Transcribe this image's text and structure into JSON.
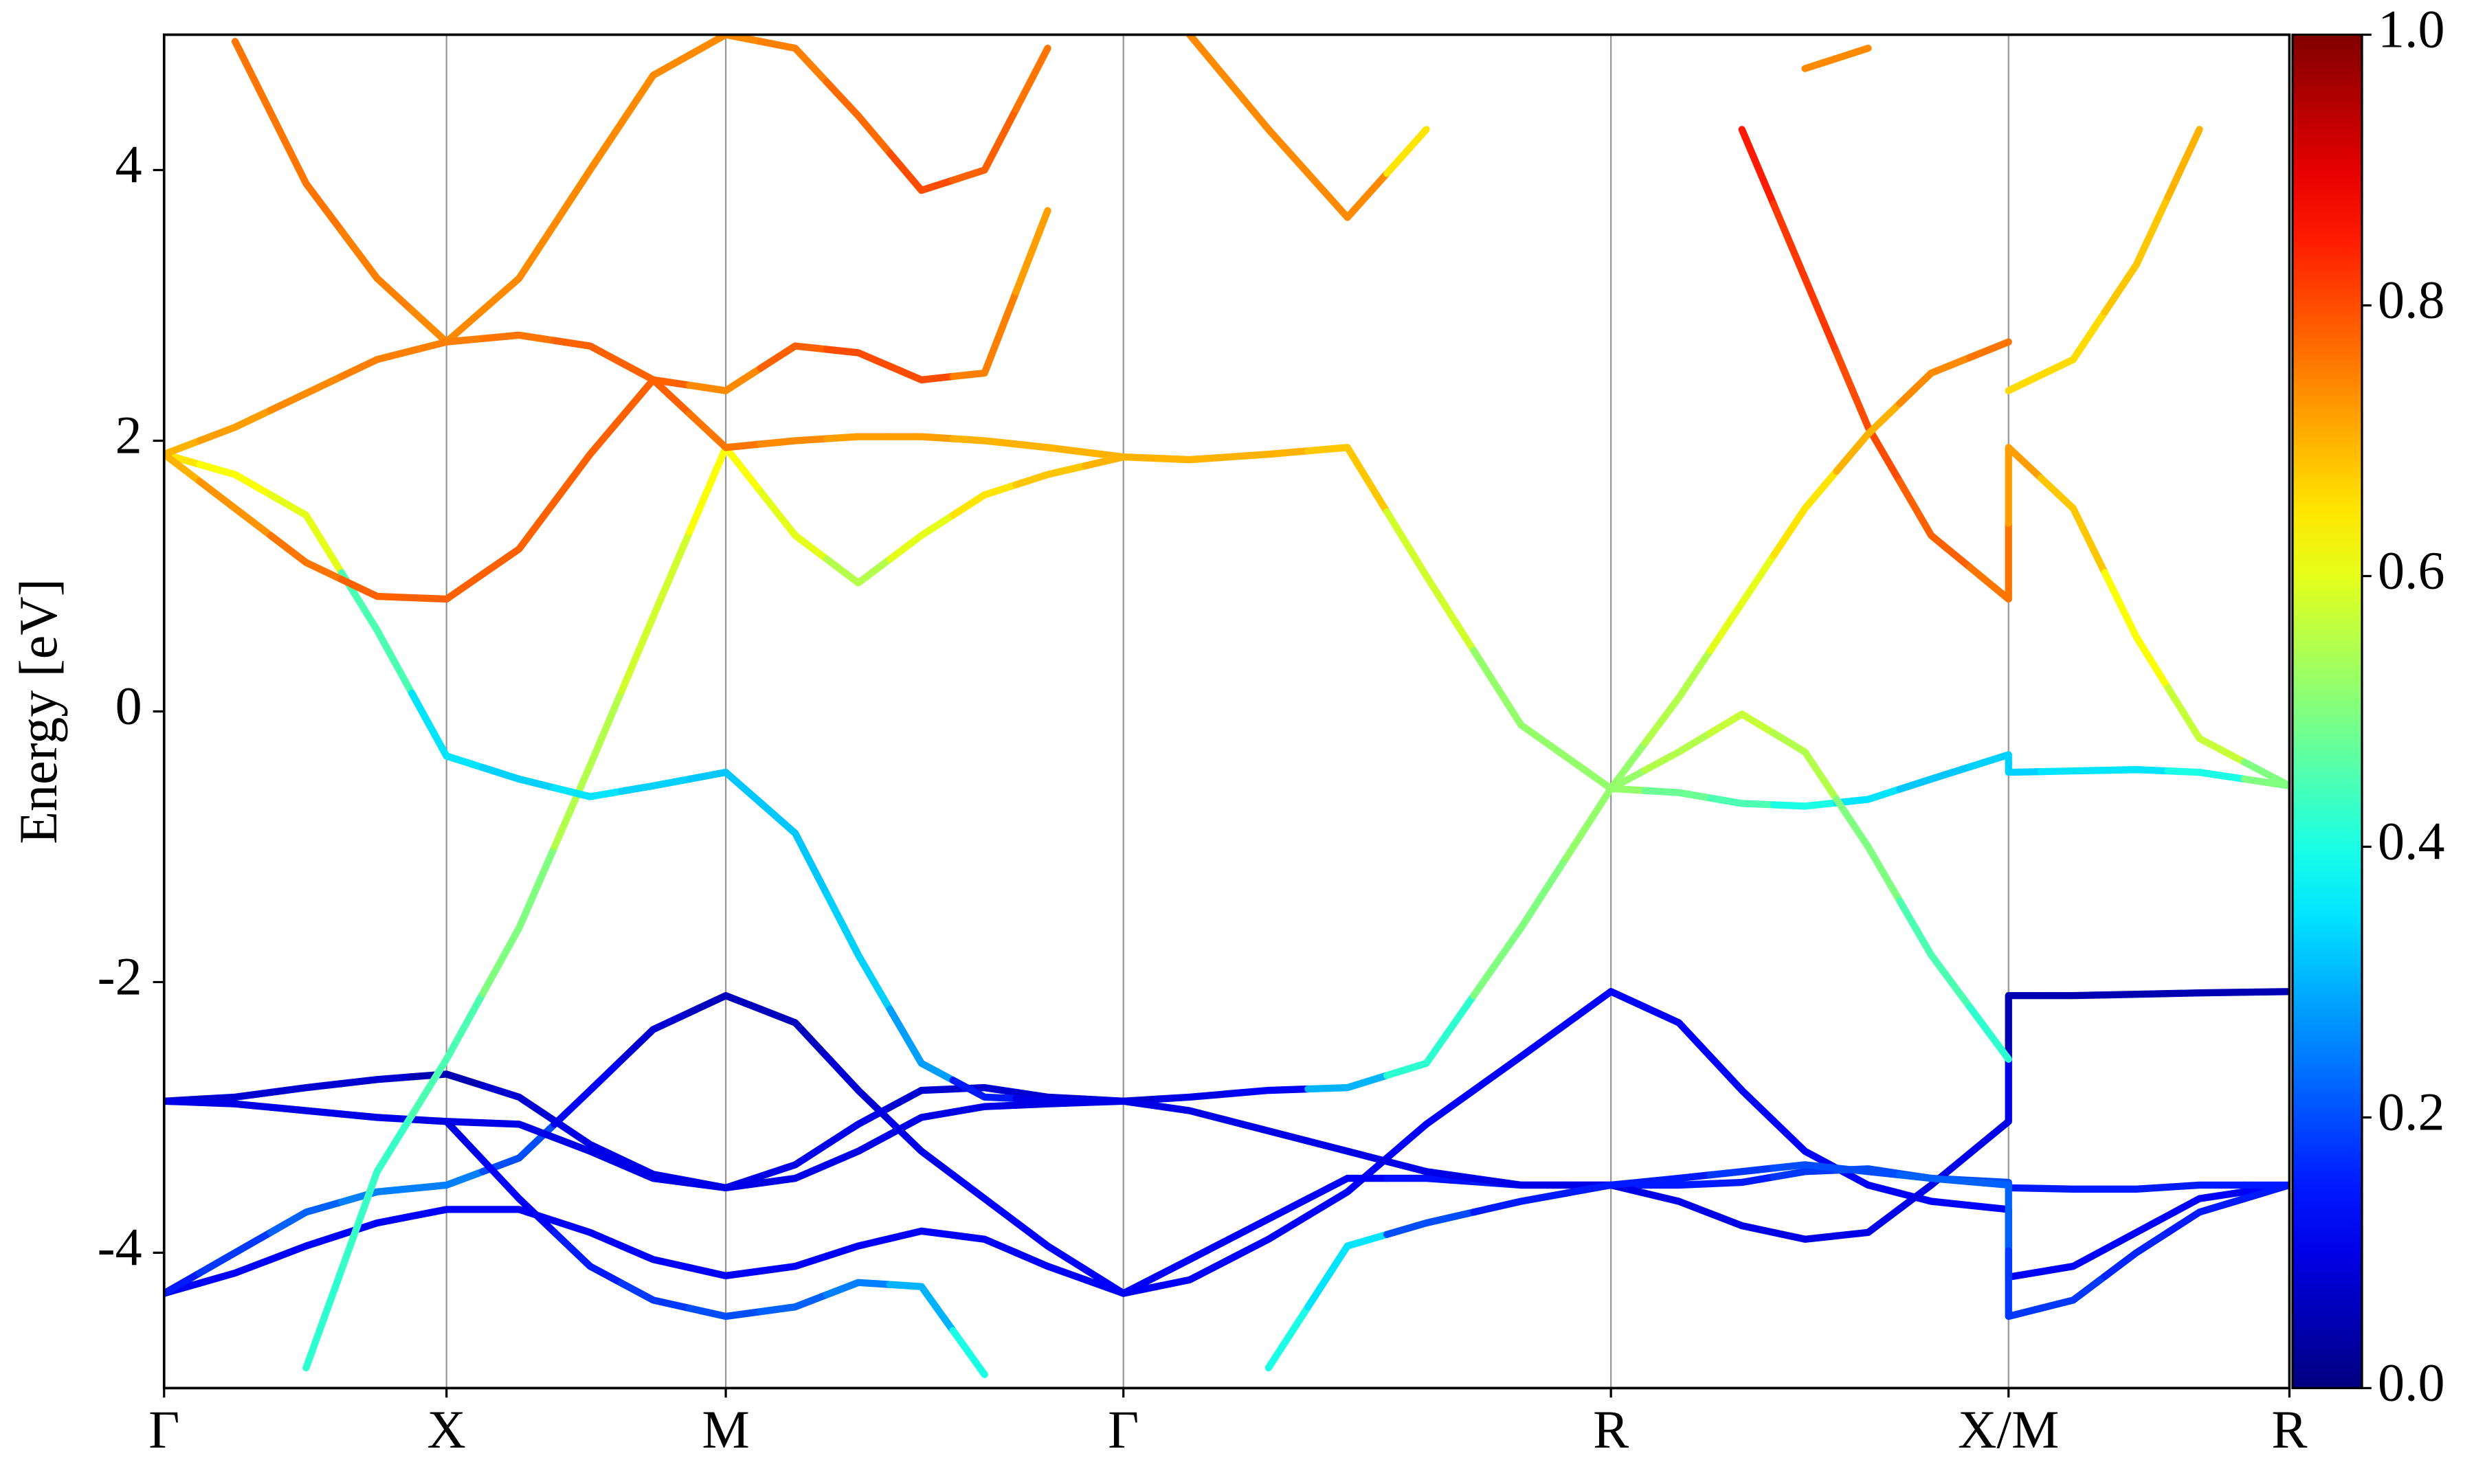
{
  "chart_data": {
    "type": "band",
    "ylabel": "Energy [eV]",
    "x": [
      0,
      45,
      90,
      135,
      179,
      225,
      270,
      310,
      356,
      400,
      440,
      480,
      520,
      560,
      608,
      650,
      700,
      750,
      800,
      860,
      917,
      960,
      1000,
      1040,
      1080,
      1120,
      1169,
      1169,
      1210,
      1250,
      1290,
      1347
    ],
    "xlim": [
      0,
      1347
    ],
    "xticks": [
      {
        "value": 0,
        "label": "Γ"
      },
      {
        "value": 179,
        "label": "X"
      },
      {
        "value": 356,
        "label": "M"
      },
      {
        "value": 608,
        "label": "Γ"
      },
      {
        "value": 917,
        "label": "R"
      },
      {
        "value": 1169,
        "label": "X/M"
      },
      {
        "value": 1347,
        "label": "R"
      }
    ],
    "grid": true,
    "ylim": [
      -5,
      5
    ],
    "yticks": [
      -4,
      -2,
      0,
      2,
      4
    ],
    "colormap": "jet",
    "clim": [
      0,
      1
    ],
    "cticks": [
      {
        "value": 0,
        "label": "0.0"
      },
      {
        "value": 0.2,
        "label": "0.2"
      },
      {
        "value": 0.4,
        "label": "0.4"
      },
      {
        "value": 0.6,
        "label": "0.6"
      },
      {
        "value": 0.8,
        "label": "0.8"
      },
      {
        "value": 1,
        "label": "1.0"
      }
    ],
    "bands": [
      {
        "values": [
          -4.3,
          -4.15,
          -3.95,
          -3.78,
          -3.68,
          -3.68,
          -3.85,
          -4.05,
          -4.17,
          -4.1,
          -3.95,
          -3.84,
          -3.9,
          -4.1,
          -4.3,
          -4.2,
          -3.9,
          -3.55,
          -3.05,
          -2.55,
          -2.07,
          -2.3,
          -2.8,
          -3.25,
          -3.5,
          -3.62,
          -3.68,
          -4.18,
          -4.1,
          -3.85,
          -3.6,
          -3.5
        ],
        "weights": [
          0.12,
          0.12,
          0.12,
          0.12,
          0.12,
          0.12,
          0.12,
          0.12,
          0.12,
          0.12,
          0.12,
          0.12,
          0.12,
          0.12,
          0.12,
          0.12,
          0.12,
          0.12,
          0.12,
          0.12,
          0.12,
          0.12,
          0.12,
          0.12,
          0.12,
          0.12,
          0.12,
          0.12,
          0.12,
          0.12,
          0.12,
          0.12
        ]
      },
      {
        "values": [
          -4.3,
          -4.0,
          -3.7,
          -3.55,
          -3.5,
          -3.3,
          -2.8,
          -2.35,
          -2.1,
          -2.3,
          -2.8,
          -3.25,
          -3.6,
          -3.95,
          -4.3,
          -4.05,
          -3.75,
          -3.45,
          -3.45,
          -3.5,
          -3.5,
          -3.5,
          -3.48,
          -3.4,
          -3.38,
          -3.45,
          -3.48,
          -3.52,
          -3.53,
          -3.53,
          -3.5,
          -3.5
        ],
        "weights": [
          0.15,
          0.18,
          0.22,
          0.25,
          0.25,
          0.2,
          0.12,
          0.08,
          0.06,
          0.06,
          0.08,
          0.1,
          0.12,
          0.12,
          0.12,
          0.12,
          0.12,
          0.12,
          0.14,
          0.15,
          0.15,
          0.15,
          0.15,
          0.18,
          0.2,
          0.2,
          0.2,
          0.15,
          0.15,
          0.15,
          0.15,
          0.15
        ]
      },
      {
        "values": [
          -2.88,
          -2.85,
          -2.78,
          -2.72,
          -2.68,
          -2.85,
          -3.2,
          -3.42,
          -3.52,
          -3.35,
          -3.05,
          -2.8,
          -2.78,
          -2.85,
          -2.88,
          -2.85,
          -2.8,
          -2.78,
          -2.6,
          -1.6,
          -0.57,
          -0.6,
          -0.68,
          -0.7,
          -0.65,
          -0.5,
          -0.32,
          -0.45,
          -0.44,
          -0.43,
          -0.45,
          -0.55
        ],
        "weights": [
          0.08,
          0.08,
          0.08,
          0.08,
          0.05,
          0.08,
          0.1,
          0.1,
          0.1,
          0.1,
          0.1,
          0.08,
          0.08,
          0.08,
          0.08,
          0.1,
          0.12,
          0.3,
          0.42,
          0.5,
          0.52,
          0.48,
          0.45,
          0.4,
          0.35,
          0.32,
          0.33,
          0.33,
          0.35,
          0.35,
          0.4,
          0.5
        ]
      },
      {
        "values": [
          -2.88,
          -2.9,
          -2.95,
          -3.0,
          -3.03,
          -3.05,
          -3.25,
          -3.45,
          -3.52,
          -3.45,
          -3.25,
          -3.0,
          -2.92,
          -2.9,
          -2.88,
          -2.95,
          -3.1,
          -3.25,
          -3.4,
          -3.5,
          -3.5,
          -3.62,
          -3.8,
          -3.9,
          -3.85,
          -3.5,
          -3.03,
          -2.1,
          -2.1,
          -2.09,
          -2.08,
          -2.07
        ],
        "weights": [
          0.1,
          0.1,
          0.1,
          0.1,
          0.1,
          0.1,
          0.1,
          0.1,
          0.1,
          0.1,
          0.1,
          0.1,
          0.1,
          0.1,
          0.1,
          0.1,
          0.1,
          0.1,
          0.1,
          0.1,
          0.1,
          0.1,
          0.1,
          0.1,
          0.1,
          0.1,
          0.1,
          0.05,
          0.05,
          0.05,
          0.05,
          0.05
        ]
      },
      {
        "values": [
          null,
          null,
          -4.85,
          -3.4,
          -2.57,
          -1.6,
          -0.4,
          0.7,
          1.95,
          1.3,
          0.95,
          1.3,
          1.6,
          1.75,
          1.88,
          1.86,
          1.9,
          1.95,
          1.0,
          -0.1,
          -0.57,
          -0.3,
          -0.02,
          -0.3,
          -1.0,
          -1.8,
          -2.57,
          null,
          null,
          null,
          null,
          null
        ],
        "weights": [
          null,
          null,
          0.42,
          0.43,
          0.45,
          0.5,
          0.55,
          0.58,
          0.62,
          0.6,
          0.55,
          0.6,
          0.65,
          0.68,
          0.7,
          0.7,
          0.7,
          0.68,
          0.58,
          0.52,
          0.52,
          0.55,
          0.57,
          0.55,
          0.5,
          0.45,
          0.42,
          null,
          null,
          null,
          null,
          null
        ]
      },
      {
        "values": [
          1.9,
          1.75,
          1.45,
          0.6,
          -0.33,
          -0.5,
          -0.63,
          -0.55,
          -0.45,
          -0.9,
          -1.8,
          -2.6,
          -2.85,
          -2.87,
          -2.88,
          null,
          -4.85,
          -3.95,
          -3.78,
          -3.62,
          -3.5,
          -3.45,
          -3.4,
          -3.35,
          -3.4,
          -3.45,
          -3.5,
          -4.47,
          -4.35,
          -4.0,
          -3.7,
          -3.5
        ],
        "weights": [
          0.65,
          0.62,
          0.6,
          0.45,
          0.35,
          0.33,
          0.35,
          0.33,
          0.32,
          0.32,
          0.33,
          0.28,
          0.15,
          0.1,
          0.1,
          null,
          0.4,
          0.35,
          0.2,
          0.15,
          0.15,
          0.15,
          0.18,
          0.2,
          0.2,
          0.22,
          0.22,
          0.18,
          0.18,
          0.16,
          0.15,
          0.15
        ]
      },
      {
        "values": [
          null,
          null,
          null,
          null,
          -3.03,
          -3.6,
          -4.1,
          -4.35,
          -4.47,
          -4.4,
          -4.22,
          -4.25,
          -4.9,
          null,
          null,
          null,
          null,
          null,
          null,
          null,
          null,
          null,
          null,
          null,
          null,
          null,
          null,
          null,
          null,
          null,
          null,
          null
        ],
        "weights": [
          null,
          null,
          null,
          null,
          0.1,
          0.12,
          0.15,
          0.18,
          0.2,
          0.22,
          0.25,
          0.3,
          0.4,
          null,
          null,
          null,
          null,
          null,
          null,
          null,
          null,
          null,
          null,
          null,
          null,
          null,
          null,
          null,
          null,
          null,
          null,
          null
        ]
      },
      {
        "values": [
          null,
          4.95,
          3.9,
          3.2,
          2.73,
          3.2,
          4.0,
          4.7,
          5.0,
          4.9,
          4.4,
          3.85,
          4.0,
          4.9,
          null,
          5.0,
          4.3,
          3.65,
          4.3,
          null,
          null,
          null,
          null,
          4.75,
          4.9,
          null,
          null,
          2.37,
          2.6,
          3.3,
          4.3,
          null
        ],
        "weights": [
          null,
          0.76,
          0.76,
          0.75,
          0.74,
          0.74,
          0.74,
          0.74,
          0.74,
          0.75,
          0.77,
          0.8,
          0.78,
          0.76,
          null,
          0.74,
          0.74,
          0.74,
          0.65,
          null,
          null,
          null,
          null,
          0.74,
          0.74,
          null,
          null,
          0.66,
          0.66,
          0.68,
          0.7,
          null
        ]
      },
      {
        "values": [
          1.9,
          1.5,
          1.1,
          0.85,
          0.83,
          1.2,
          1.9,
          2.45,
          1.95,
          2.0,
          2.03,
          2.03,
          2.0,
          1.95,
          1.88,
          null,
          null,
          null,
          null,
          null,
          null,
          null,
          null,
          null,
          null,
          null,
          null,
          null,
          null,
          null,
          null,
          null
        ],
        "weights": [
          0.7,
          0.73,
          0.76,
          0.78,
          0.78,
          0.78,
          0.78,
          0.78,
          0.76,
          0.74,
          0.72,
          0.72,
          0.7,
          0.7,
          0.7,
          null,
          null,
          null,
          null,
          null,
          null,
          null,
          null,
          null,
          null,
          null,
          null,
          null,
          null,
          null,
          null,
          null
        ]
      },
      {
        "values": [
          1.9,
          2.1,
          2.35,
          2.6,
          2.73,
          2.78,
          2.7,
          2.45,
          2.37,
          2.7,
          2.65,
          2.45,
          2.5,
          3.7,
          null,
          null,
          null,
          null,
          null,
          null,
          null,
          null,
          null,
          null,
          null,
          null,
          null,
          null,
          null,
          null,
          null,
          null
        ],
        "weights": [
          0.7,
          0.72,
          0.74,
          0.75,
          0.75,
          0.76,
          0.78,
          0.78,
          0.74,
          0.78,
          0.8,
          0.8,
          0.75,
          0.72,
          null,
          null,
          null,
          null,
          null,
          null,
          null,
          null,
          null,
          null,
          null,
          null,
          null,
          null,
          null,
          null,
          null,
          null
        ]
      },
      {
        "values": [
          null,
          null,
          null,
          null,
          null,
          null,
          null,
          null,
          null,
          null,
          null,
          null,
          null,
          null,
          null,
          null,
          null,
          null,
          null,
          null,
          null,
          null,
          4.3,
          3.2,
          2.1,
          1.3,
          0.83,
          1.95,
          1.5,
          0.55,
          -0.2,
          -0.55
        ],
        "weights": [
          null,
          null,
          null,
          null,
          null,
          null,
          null,
          null,
          null,
          null,
          null,
          null,
          null,
          null,
          null,
          null,
          null,
          null,
          null,
          null,
          null,
          null,
          0.85,
          0.82,
          0.8,
          0.78,
          0.76,
          0.72,
          0.68,
          0.62,
          0.57,
          0.5
        ]
      },
      {
        "values": [
          null,
          null,
          null,
          null,
          null,
          null,
          null,
          null,
          null,
          null,
          null,
          null,
          null,
          null,
          null,
          null,
          null,
          null,
          null,
          null,
          -0.57,
          0.1,
          0.8,
          1.5,
          2.05,
          2.5,
          2.73,
          null,
          null,
          null,
          null,
          null
        ],
        "weights": [
          null,
          null,
          null,
          null,
          null,
          null,
          null,
          null,
          null,
          null,
          null,
          null,
          null,
          null,
          null,
          null,
          null,
          null,
          null,
          null,
          0.52,
          0.55,
          0.6,
          0.65,
          0.7,
          0.74,
          0.76,
          null,
          null,
          null,
          null,
          null
        ]
      }
    ]
  }
}
